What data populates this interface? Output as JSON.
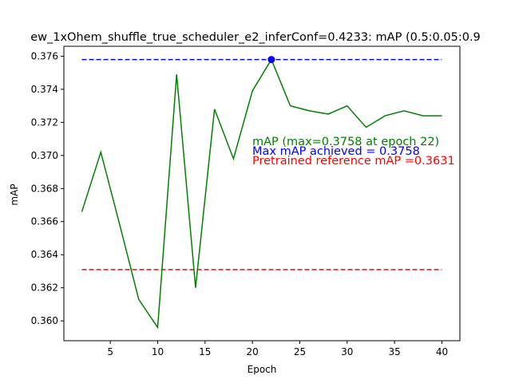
{
  "chart_data": {
    "type": "line",
    "title": "ew_1xOhem_shuffle_true_scheduler_e2_inferConf=0.4233:  mAP (0.5:0.05:0.9",
    "xlabel": "Epoch",
    "ylabel": "mAP",
    "xlim": [
      0.1,
      41.9
    ],
    "ylim": [
      0.3588,
      0.3766
    ],
    "xticks": [
      5,
      10,
      15,
      20,
      25,
      30,
      35,
      40
    ],
    "yticks": [
      0.36,
      0.362,
      0.364,
      0.366,
      0.368,
      0.37,
      0.372,
      0.374,
      0.376
    ],
    "grid": false,
    "series": [
      {
        "color": "#008000",
        "x": [
          2,
          4,
          6,
          8,
          10,
          12,
          14,
          16,
          18,
          20,
          22,
          24,
          26,
          28,
          30,
          32,
          34,
          36,
          38,
          40
        ],
        "values": [
          0.3666,
          0.3702,
          0.3658,
          0.3613,
          0.3596,
          0.3749,
          0.362,
          0.3728,
          0.3698,
          0.3739,
          0.3758,
          0.373,
          0.3727,
          0.3725,
          0.373,
          0.3717,
          0.3724,
          0.3727,
          0.3724,
          0.3724
        ]
      }
    ],
    "reference_lines": [
      {
        "color": "#0000ff",
        "y": 0.3758,
        "x": [
          2,
          40
        ]
      },
      {
        "color": "#ff0000",
        "y": 0.3631,
        "x": [
          2,
          40
        ]
      }
    ],
    "max_point": {
      "x": 22,
      "y": 0.3758,
      "color": "#0000ff"
    },
    "annotations": [
      {
        "text": "mAP (max=0.3758 at epoch 22)",
        "color": "#008000"
      },
      {
        "text": "Max mAP achieved = 0.3758",
        "color": "#0000ff"
      },
      {
        "text": "Pretrained reference mAP =0.3631",
        "color": "#ff0000"
      }
    ]
  }
}
